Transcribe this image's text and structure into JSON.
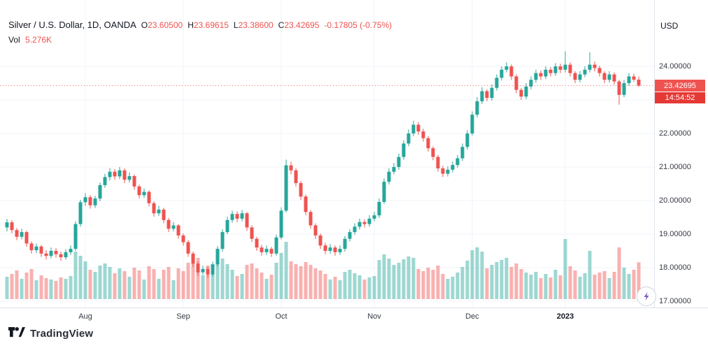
{
  "header": {
    "symbol_title": "Silver / U.S. Dollar, 1D, OANDA",
    "ohlc": {
      "o_label": "O",
      "o": "23.60500",
      "h_label": "H",
      "h": "23.69615",
      "l_label": "L",
      "l": "23.38600",
      "c_label": "C",
      "c": "23.42695",
      "change": "-0.17805 (-0.75%)"
    },
    "volume_label": "Vol",
    "volume_value": "5.276K"
  },
  "price_axis": {
    "currency": "USD",
    "labels": [
      "24.00000",
      "23.00000",
      "22.00000",
      "21.00000",
      "20.00000",
      "19.00000",
      "18.00000",
      "17.00000"
    ],
    "last_price": "23.42695",
    "countdown": "14:54:52"
  },
  "footer": {
    "brand": "TradingView"
  },
  "colors": {
    "up": "#26a69a",
    "down": "#ef5350",
    "volume_up": "rgba(38,166,154,0.45)",
    "volume_down": "rgba(239,83,80,0.45)",
    "grid": "#f0f3fa",
    "last_price_line": "#ef5350"
  },
  "chart_data": {
    "type": "candlestick",
    "title": "Silver / U.S. Dollar",
    "interval": "1D",
    "exchange": "OANDA",
    "currency": "USD",
    "last": {
      "open": 23.605,
      "high": 23.69615,
      "low": 23.386,
      "close": 23.42695,
      "change": -0.17805,
      "change_pct": -0.75,
      "volume_k": 5.276
    },
    "y_axis": {
      "ticks": [
        24,
        23,
        22,
        21,
        20,
        19,
        18,
        17
      ],
      "format_decimals": 5,
      "range_shown": [
        16.8,
        24.6
      ]
    },
    "x_axis": {
      "labels": [
        {
          "text": "Aug",
          "index": 16
        },
        {
          "text": "Sep",
          "index": 36
        },
        {
          "text": "Oct",
          "index": 56
        },
        {
          "text": "Nov",
          "index": 75
        },
        {
          "text": "Dec",
          "index": 95
        },
        {
          "text": "2023",
          "index": 114,
          "year": true
        }
      ]
    },
    "candles_format": [
      "open",
      "high",
      "low",
      "close",
      "volume_k"
    ],
    "candles": [
      [
        19.2,
        19.45,
        19.08,
        19.35,
        3.2
      ],
      [
        19.35,
        19.42,
        19.02,
        19.12,
        3.6
      ],
      [
        19.12,
        19.18,
        18.82,
        18.92,
        4.1
      ],
      [
        18.92,
        19.16,
        18.84,
        19.06,
        2.9
      ],
      [
        19.06,
        19.1,
        18.62,
        18.72,
        3.8
      ],
      [
        18.72,
        18.78,
        18.42,
        18.52,
        4.3
      ],
      [
        18.52,
        18.72,
        18.44,
        18.63,
        2.7
      ],
      [
        18.63,
        18.68,
        18.32,
        18.42,
        3.4
      ],
      [
        18.42,
        18.52,
        18.24,
        18.35,
        3.0
      ],
      [
        18.35,
        18.6,
        18.28,
        18.5,
        2.8
      ],
      [
        18.5,
        18.58,
        18.3,
        18.4,
        2.6
      ],
      [
        18.4,
        18.48,
        18.2,
        18.31,
        3.1
      ],
      [
        18.31,
        18.55,
        18.24,
        18.46,
        2.9
      ],
      [
        18.46,
        18.66,
        18.38,
        18.56,
        3.3
      ],
      [
        18.56,
        19.38,
        18.5,
        19.3,
        6.8
      ],
      [
        19.3,
        20.02,
        19.22,
        19.95,
        6.2
      ],
      [
        19.95,
        20.22,
        19.84,
        20.1,
        5.4
      ],
      [
        20.1,
        20.16,
        19.76,
        19.86,
        4.2
      ],
      [
        19.86,
        20.14,
        19.78,
        20.06,
        3.9
      ],
      [
        20.06,
        20.54,
        19.98,
        20.46,
        4.8
      ],
      [
        20.46,
        20.8,
        20.38,
        20.7,
        5.1
      ],
      [
        20.7,
        20.96,
        20.6,
        20.86,
        4.6
      ],
      [
        20.86,
        20.94,
        20.62,
        20.72,
        3.7
      ],
      [
        20.72,
        21.0,
        20.64,
        20.9,
        4.4
      ],
      [
        20.9,
        20.96,
        20.52,
        20.62,
        4.0
      ],
      [
        20.62,
        20.84,
        20.54,
        20.73,
        3.2
      ],
      [
        20.73,
        20.78,
        20.32,
        20.42,
        4.5
      ],
      [
        20.42,
        20.48,
        20.06,
        20.16,
        4.1
      ],
      [
        20.16,
        20.36,
        20.08,
        20.26,
        2.8
      ],
      [
        20.26,
        20.3,
        19.82,
        19.92,
        4.7
      ],
      [
        19.92,
        19.98,
        19.52,
        19.62,
        4.3
      ],
      [
        19.62,
        19.84,
        19.54,
        19.73,
        2.9
      ],
      [
        19.73,
        19.78,
        19.32,
        19.42,
        4.2
      ],
      [
        19.42,
        19.48,
        19.06,
        19.16,
        4.6
      ],
      [
        19.16,
        19.36,
        19.08,
        19.26,
        2.7
      ],
      [
        19.26,
        19.3,
        18.86,
        18.96,
        4.4
      ],
      [
        18.96,
        19.02,
        18.66,
        18.76,
        4.0
      ],
      [
        18.76,
        18.82,
        18.32,
        18.42,
        5.2
      ],
      [
        18.42,
        18.48,
        18.02,
        18.12,
        5.6
      ],
      [
        18.12,
        18.18,
        17.76,
        17.86,
        5.9
      ],
      [
        17.86,
        18.06,
        17.78,
        17.96,
        3.4
      ],
      [
        17.96,
        18.02,
        17.7,
        17.8,
        4.8
      ],
      [
        17.8,
        18.18,
        17.74,
        18.1,
        4.1
      ],
      [
        18.1,
        18.64,
        18.04,
        18.56,
        5.3
      ],
      [
        18.56,
        19.14,
        18.48,
        19.06,
        5.8
      ],
      [
        19.06,
        19.52,
        19.0,
        19.42,
        5.0
      ],
      [
        19.42,
        19.7,
        19.34,
        19.6,
        4.2
      ],
      [
        19.6,
        19.68,
        19.36,
        19.46,
        3.3
      ],
      [
        19.46,
        19.72,
        19.38,
        19.62,
        3.6
      ],
      [
        19.62,
        19.66,
        19.1,
        19.2,
        4.9
      ],
      [
        19.2,
        19.26,
        18.76,
        18.86,
        5.1
      ],
      [
        18.86,
        18.92,
        18.5,
        18.6,
        4.4
      ],
      [
        18.6,
        18.68,
        18.36,
        18.46,
        3.8
      ],
      [
        18.46,
        18.66,
        18.38,
        18.56,
        2.9
      ],
      [
        18.56,
        18.62,
        18.32,
        18.42,
        3.5
      ],
      [
        18.42,
        18.98,
        18.36,
        18.9,
        5.2
      ],
      [
        18.9,
        19.8,
        18.84,
        19.7,
        6.6
      ],
      [
        19.7,
        21.22,
        19.64,
        21.05,
        8.2
      ],
      [
        21.05,
        21.16,
        20.78,
        20.9,
        5.4
      ],
      [
        20.9,
        20.96,
        20.42,
        20.52,
        5.0
      ],
      [
        20.52,
        20.58,
        20.02,
        20.12,
        4.7
      ],
      [
        20.12,
        20.18,
        19.56,
        19.66,
        5.3
      ],
      [
        19.66,
        19.72,
        19.16,
        19.26,
        4.9
      ],
      [
        19.26,
        19.32,
        18.86,
        18.96,
        4.4
      ],
      [
        18.96,
        19.02,
        18.56,
        18.66,
        4.1
      ],
      [
        18.66,
        18.74,
        18.4,
        18.5,
        3.6
      ],
      [
        18.5,
        18.7,
        18.42,
        18.6,
        2.8
      ],
      [
        18.6,
        18.66,
        18.36,
        18.46,
        3.2
      ],
      [
        18.46,
        18.66,
        18.38,
        18.56,
        2.7
      ],
      [
        18.56,
        18.94,
        18.48,
        18.86,
        3.9
      ],
      [
        18.86,
        19.14,
        18.78,
        19.06,
        4.2
      ],
      [
        19.06,
        19.32,
        18.98,
        19.22,
        3.7
      ],
      [
        19.22,
        19.46,
        19.14,
        19.36,
        3.4
      ],
      [
        19.36,
        19.44,
        19.2,
        19.3,
        2.8
      ],
      [
        19.3,
        19.56,
        19.22,
        19.46,
        3.1
      ],
      [
        19.46,
        19.66,
        19.38,
        19.56,
        3.3
      ],
      [
        19.56,
        20.06,
        19.48,
        19.96,
        5.6
      ],
      [
        19.96,
        20.66,
        19.9,
        20.56,
        6.4
      ],
      [
        20.56,
        20.96,
        20.48,
        20.86,
        5.8
      ],
      [
        20.86,
        21.12,
        20.78,
        21.0,
        4.9
      ],
      [
        21.0,
        21.4,
        20.92,
        21.3,
        5.2
      ],
      [
        21.3,
        21.8,
        21.22,
        21.7,
        5.7
      ],
      [
        21.7,
        22.12,
        21.62,
        22.0,
        6.1
      ],
      [
        22.0,
        22.38,
        21.92,
        22.26,
        5.9
      ],
      [
        22.26,
        22.34,
        21.96,
        22.06,
        4.3
      ],
      [
        22.06,
        22.14,
        21.76,
        21.86,
        4.0
      ],
      [
        21.86,
        21.92,
        21.46,
        21.56,
        4.5
      ],
      [
        21.56,
        21.62,
        21.2,
        21.3,
        4.2
      ],
      [
        21.3,
        21.36,
        20.86,
        20.96,
        4.8
      ],
      [
        20.96,
        21.04,
        20.7,
        20.8,
        3.6
      ],
      [
        20.8,
        21.02,
        20.72,
        20.92,
        2.9
      ],
      [
        20.92,
        21.16,
        20.84,
        21.06,
        3.2
      ],
      [
        21.06,
        21.36,
        20.98,
        21.26,
        3.8
      ],
      [
        21.26,
        21.7,
        21.18,
        21.6,
        4.6
      ],
      [
        21.6,
        22.1,
        21.52,
        22.0,
        5.5
      ],
      [
        22.0,
        22.66,
        21.94,
        22.56,
        7.0
      ],
      [
        22.56,
        23.08,
        22.48,
        22.96,
        7.4
      ],
      [
        22.96,
        23.38,
        22.88,
        23.26,
        6.8
      ],
      [
        23.26,
        23.32,
        22.96,
        23.06,
        4.4
      ],
      [
        23.06,
        23.46,
        22.98,
        23.36,
        4.9
      ],
      [
        23.36,
        23.76,
        23.28,
        23.66,
        5.3
      ],
      [
        23.66,
        24.0,
        23.58,
        23.9,
        5.6
      ],
      [
        23.9,
        24.12,
        23.82,
        24.0,
        5.9
      ],
      [
        24.0,
        24.06,
        23.6,
        23.7,
        4.6
      ],
      [
        23.7,
        23.76,
        23.2,
        23.3,
        5.1
      ],
      [
        23.3,
        23.36,
        23.0,
        23.1,
        4.3
      ],
      [
        23.1,
        23.5,
        23.02,
        23.4,
        3.8
      ],
      [
        23.4,
        23.7,
        23.32,
        23.6,
        3.5
      ],
      [
        23.6,
        23.9,
        23.52,
        23.8,
        3.9
      ],
      [
        23.8,
        23.88,
        23.6,
        23.7,
        3.0
      ],
      [
        23.7,
        24.0,
        23.62,
        23.9,
        3.6
      ],
      [
        23.9,
        23.98,
        23.7,
        23.8,
        3.1
      ],
      [
        23.8,
        24.1,
        23.72,
        24.0,
        4.2
      ],
      [
        24.0,
        24.08,
        23.8,
        23.9,
        3.4
      ],
      [
        23.9,
        24.45,
        23.82,
        24.05,
        8.6
      ],
      [
        24.05,
        24.12,
        23.7,
        23.8,
        4.7
      ],
      [
        23.8,
        23.86,
        23.5,
        23.6,
        4.1
      ],
      [
        23.6,
        23.86,
        23.52,
        23.76,
        3.2
      ],
      [
        23.76,
        24.0,
        23.68,
        23.9,
        3.7
      ],
      [
        23.9,
        24.42,
        23.82,
        24.05,
        6.9
      ],
      [
        24.05,
        24.14,
        23.85,
        23.95,
        3.5
      ],
      [
        23.95,
        24.02,
        23.7,
        23.8,
        3.8
      ],
      [
        23.8,
        23.86,
        23.5,
        23.6,
        4.0
      ],
      [
        23.6,
        23.86,
        23.52,
        23.76,
        3.0
      ],
      [
        23.76,
        23.82,
        23.45,
        23.55,
        3.9
      ],
      [
        23.55,
        23.6,
        22.86,
        23.15,
        7.4
      ],
      [
        23.15,
        23.6,
        23.08,
        23.5,
        4.5
      ],
      [
        23.5,
        23.8,
        23.42,
        23.7,
        3.6
      ],
      [
        23.7,
        23.78,
        23.54,
        23.605,
        4.2
      ],
      [
        23.605,
        23.69615,
        23.386,
        23.42695,
        5.276
      ]
    ]
  }
}
